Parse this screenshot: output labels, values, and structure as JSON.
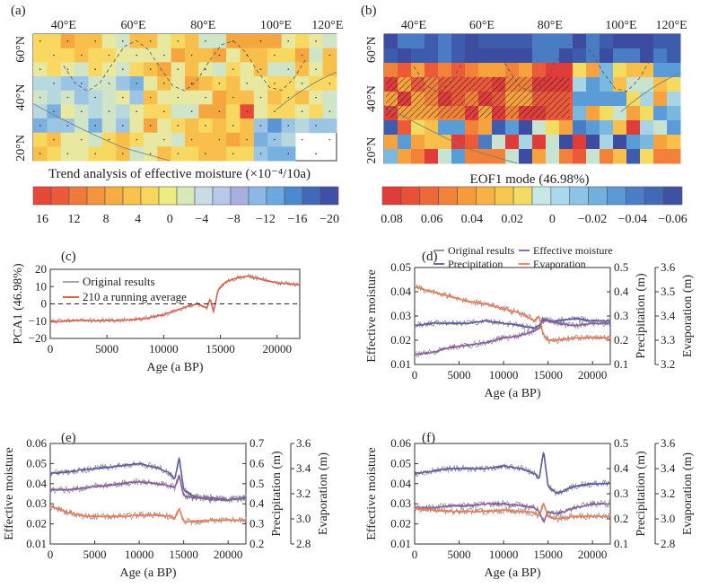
{
  "panels": {
    "a": {
      "label": "(a)",
      "caption": "Trend analysis of effective moisture (×10⁻⁴/10a)",
      "lon_ticks": [
        "40°E",
        "60°E",
        "80°E",
        "100°E",
        "120°E"
      ],
      "lat_ticks": [
        "60°N",
        "40°N",
        "20°N"
      ],
      "colorbar_ticks": [
        "16",
        "12",
        "8",
        "4",
        "0",
        "−4",
        "−8",
        "−12",
        "−16",
        "−20"
      ]
    },
    "b": {
      "label": "(b)",
      "caption": "EOF1 mode (46.98%)",
      "lon_ticks": [
        "40°E",
        "60°E",
        "80°E",
        "100°E",
        "120°E"
      ],
      "lat_ticks": [
        "60°N",
        "40°N",
        "20°N"
      ],
      "colorbar_ticks": [
        "0.08",
        "0.06",
        "0.04",
        "0.02",
        "0",
        "−0.02",
        "−0.04",
        "−0.06"
      ]
    },
    "c": {
      "label": "(c)"
    },
    "d": {
      "label": "(d)"
    },
    "e": {
      "label": "(e)"
    },
    "f": {
      "label": "(f)"
    }
  },
  "colors": {
    "original": "#8c8c8c",
    "running_avg": "#e0604a",
    "precipitation": "#5a5aa0",
    "effective_moisture": "#8a5aa0",
    "evaporation": "#f07a50"
  },
  "chart_data": [
    {
      "panel": "c",
      "type": "line",
      "xlabel": "Age (a BP)",
      "ylabel": "PCA1 (46.98%)",
      "xlim": [
        0,
        22000
      ],
      "ylim": [
        -25,
        25
      ],
      "xticks": [
        "0",
        "5000",
        "10000",
        "15000",
        "20000"
      ],
      "yticks": [
        "20",
        "10",
        "0",
        "−10",
        "−20"
      ],
      "legend": [
        "Original results",
        "210 a running average"
      ],
      "x": [
        0,
        2000,
        4000,
        6000,
        8000,
        10000,
        11000,
        12000,
        13000,
        13800,
        14100,
        14400,
        14800,
        15500,
        16500,
        17500,
        18500,
        20000,
        22000
      ],
      "series": [
        {
          "name": "210 a running average",
          "values": [
            -13,
            -12,
            -12,
            -12,
            -11,
            -8,
            -5,
            -2,
            0,
            -3,
            4,
            -6,
            10,
            16,
            19,
            20,
            18,
            15,
            14
          ]
        }
      ]
    },
    {
      "panel": "d",
      "type": "line",
      "xlabel": "Age (a BP)",
      "ylabel": "Effective moisture",
      "ylabel2": "Precipitation (m)",
      "ylabel3": "Evaporation (m)",
      "xlim": [
        0,
        22000
      ],
      "ylim": [
        0.01,
        0.05
      ],
      "ylim2": [
        0.1,
        0.5
      ],
      "ylim3": [
        3.2,
        3.6
      ],
      "xticks": [
        "0",
        "5000",
        "10000",
        "15000",
        "20000"
      ],
      "yticks": [
        "0.05",
        "0.04",
        "0.03",
        "0.02",
        "0.01"
      ],
      "yticks2": [
        "0.5",
        "0.4",
        "0.3",
        "0.2",
        "0.1"
      ],
      "yticks3": [
        "3.6",
        "3.5",
        "3.4",
        "3.3",
        "3.2"
      ],
      "legend": [
        "Original results",
        "Effective moisture",
        "Precipitation",
        "Evaporation"
      ],
      "x": [
        0,
        2000,
        4000,
        6000,
        8000,
        10000,
        12000,
        13500,
        14000,
        14400,
        15000,
        16000,
        18000,
        20000,
        22000
      ],
      "series": [
        {
          "name": "Precipitation",
          "axis": 2,
          "values": [
            0.26,
            0.27,
            0.27,
            0.27,
            0.28,
            0.27,
            0.26,
            0.25,
            0.26,
            0.29,
            0.28,
            0.28,
            0.29,
            0.28,
            0.28
          ]
        },
        {
          "name": "Effective moisture",
          "axis": 1,
          "values": [
            0.014,
            0.015,
            0.017,
            0.018,
            0.019,
            0.021,
            0.022,
            0.024,
            0.025,
            0.028,
            0.028,
            0.027,
            0.026,
            0.027,
            0.027
          ]
        },
        {
          "name": "Evaporation",
          "axis": 3,
          "values": [
            3.52,
            3.5,
            3.48,
            3.46,
            3.45,
            3.43,
            3.41,
            3.38,
            3.4,
            3.33,
            3.3,
            3.3,
            3.31,
            3.31,
            3.31
          ]
        }
      ]
    },
    {
      "panel": "e",
      "type": "line",
      "xlabel": "Age (a BP)",
      "ylabel": "Effective moisture",
      "ylabel2": "Precipitation (m)",
      "ylabel3": "Evaporation (m)",
      "xlim": [
        0,
        22000
      ],
      "ylim": [
        0.01,
        0.06
      ],
      "ylim2": [
        0.2,
        0.7
      ],
      "ylim3": [
        2.8,
        3.6
      ],
      "xticks": [
        "0",
        "5000",
        "10000",
        "15000",
        "20000"
      ],
      "yticks": [
        "0.06",
        "0.05",
        "0.04",
        "0.03",
        "0.02",
        "0.01"
      ],
      "yticks2": [
        "0.7",
        "0.6",
        "0.5",
        "0.4",
        "0.3",
        "0.2"
      ],
      "yticks3": [
        "3.6",
        "3.4",
        "3.2",
        "3.0",
        "2.8"
      ],
      "x": [
        0,
        2000,
        4000,
        6000,
        8000,
        10000,
        12000,
        13500,
        14000,
        14500,
        15000,
        16000,
        18000,
        20000,
        22000
      ],
      "series": [
        {
          "name": "Precipitation",
          "axis": 2,
          "values": [
            0.55,
            0.56,
            0.57,
            0.58,
            0.59,
            0.6,
            0.58,
            0.55,
            0.52,
            0.63,
            0.47,
            0.44,
            0.42,
            0.42,
            0.43
          ]
        },
        {
          "name": "Effective moisture",
          "axis": 1,
          "values": [
            0.037,
            0.037,
            0.038,
            0.039,
            0.04,
            0.041,
            0.04,
            0.039,
            0.038,
            0.044,
            0.034,
            0.033,
            0.033,
            0.032,
            0.033
          ]
        },
        {
          "name": "Evaporation",
          "axis": 3,
          "values": [
            3.1,
            3.05,
            3.02,
            3.02,
            3.02,
            3.03,
            3.03,
            3.02,
            3.0,
            3.08,
            2.98,
            2.98,
            2.99,
            2.99,
            2.99
          ]
        }
      ]
    },
    {
      "panel": "f",
      "type": "line",
      "xlabel": "Age (a BP)",
      "ylabel": "Effective moisture",
      "ylabel2": "Precipitation (m)",
      "ylabel3": "Evaporation (m)",
      "xlim": [
        0,
        22000
      ],
      "ylim": [
        0.01,
        0.06
      ],
      "ylim2": [
        0.1,
        0.5
      ],
      "ylim3": [
        2.8,
        3.6
      ],
      "xticks": [
        "0",
        "5000",
        "10000",
        "15000",
        "20000"
      ],
      "yticks": [
        "0.06",
        "0.05",
        "0.04",
        "0.03",
        "0.02",
        "0.01"
      ],
      "yticks2": [
        "0.5",
        "0.4",
        "0.3",
        "0.2",
        "0.1"
      ],
      "yticks3": [
        "3.6",
        "3.4",
        "3.2",
        "3.0",
        "2.8"
      ],
      "x": [
        0,
        2000,
        4000,
        6000,
        8000,
        10000,
        12000,
        13500,
        14000,
        14500,
        15000,
        16000,
        18000,
        20000,
        22000
      ],
      "series": [
        {
          "name": "Precipitation",
          "axis": 2,
          "values": [
            0.38,
            0.39,
            0.4,
            0.4,
            0.4,
            0.41,
            0.4,
            0.38,
            0.36,
            0.47,
            0.33,
            0.3,
            0.33,
            0.34,
            0.34
          ]
        },
        {
          "name": "Effective moisture",
          "axis": 1,
          "values": [
            0.028,
            0.028,
            0.029,
            0.029,
            0.03,
            0.03,
            0.029,
            0.028,
            0.026,
            0.021,
            0.026,
            0.025,
            0.028,
            0.03,
            0.03
          ]
        },
        {
          "name": "Evaporation",
          "axis": 3,
          "values": [
            3.08,
            3.07,
            3.06,
            3.06,
            3.06,
            3.07,
            3.06,
            3.05,
            3.02,
            3.12,
            3.02,
            3.0,
            3.02,
            3.02,
            3.02
          ]
        }
      ]
    }
  ]
}
